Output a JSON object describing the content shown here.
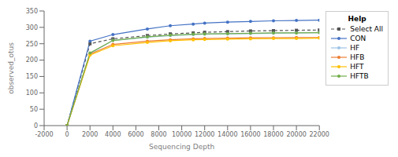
{
  "chart_data": {
    "type": "line",
    "x_label": "Sequencing Depth",
    "y_label": "observed_otus",
    "legend_title": "Help",
    "legend": "right",
    "grid": false,
    "xlim": [
      -2000,
      22000
    ],
    "ylim": [
      0,
      350
    ],
    "xticks": [
      -2000,
      0,
      2000,
      4000,
      6000,
      8000,
      10000,
      12000,
      14000,
      16000,
      18000,
      20000,
      22000
    ],
    "yticks": [
      0,
      50,
      100,
      150,
      200,
      250,
      300,
      350
    ],
    "x": [
      0,
      2000,
      4000,
      7000,
      9000,
      11000,
      12000,
      14000,
      16000,
      18000,
      20000,
      22000
    ],
    "series": [
      {
        "name": "Select All",
        "color": "#555555",
        "marker": "square",
        "line_style": "dashed",
        "values": [
          0,
          250,
          265,
          275,
          280,
          283,
          285,
          287,
          289,
          290,
          291,
          292
        ]
      },
      {
        "name": "CON",
        "color": "#4472c4",
        "marker": "circle",
        "line_style": "solid",
        "values": [
          0,
          258,
          278,
          295,
          305,
          310,
          313,
          316,
          318,
          320,
          321,
          322
        ]
      },
      {
        "name": "HF",
        "color": "#9dc3e6",
        "marker": "circle",
        "line_style": "solid",
        "values": [
          0,
          220,
          260,
          270,
          275,
          278,
          279,
          280,
          281,
          282,
          283,
          284
        ]
      },
      {
        "name": "HFB",
        "color": "#ed7d31",
        "marker": "circle",
        "line_style": "solid",
        "values": [
          0,
          218,
          248,
          258,
          262,
          265,
          266,
          267,
          268,
          268,
          269,
          269
        ]
      },
      {
        "name": "HFT",
        "color": "#ffc000",
        "marker": "circle",
        "line_style": "solid",
        "values": [
          0,
          215,
          244,
          254,
          259,
          262,
          263,
          264,
          265,
          266,
          266,
          267
        ]
      },
      {
        "name": "HFTB",
        "color": "#70ad47",
        "marker": "circle",
        "line_style": "solid",
        "values": [
          0,
          222,
          260,
          271,
          276,
          279,
          280,
          281,
          282,
          283,
          283,
          284
        ]
      }
    ]
  }
}
